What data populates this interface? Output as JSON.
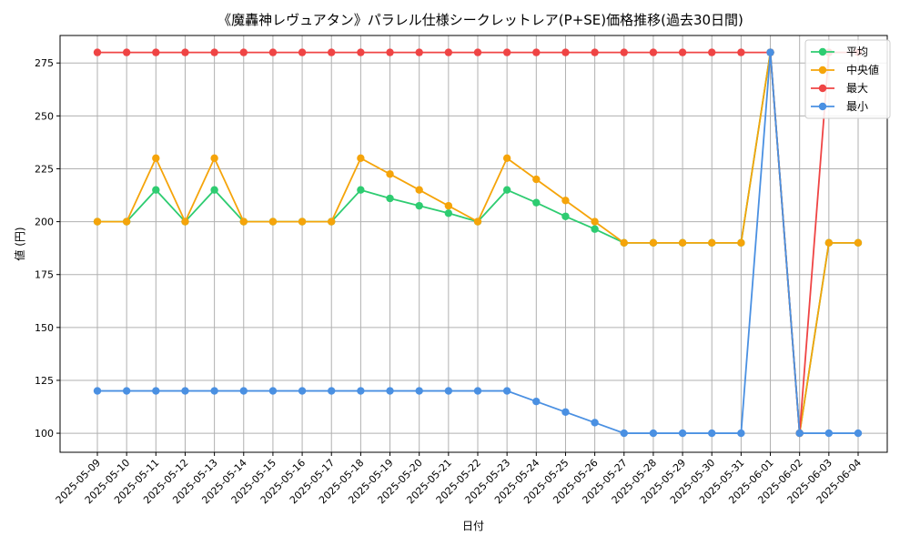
{
  "chart_data": {
    "type": "line",
    "title": "《魔轟神レヴュアタン》パラレル仕様シークレットレア(P+SE)価格推移(過去30日間)",
    "xlabel": "日付",
    "ylabel": "値 (円)",
    "ylim": [
      91,
      288
    ],
    "yticks": [
      100,
      125,
      150,
      175,
      200,
      225,
      250,
      275
    ],
    "grid": true,
    "legend_position": "top-right",
    "categories": [
      "2025-05-09",
      "2025-05-10",
      "2025-05-11",
      "2025-05-12",
      "2025-05-13",
      "2025-05-14",
      "2025-05-15",
      "2025-05-16",
      "2025-05-17",
      "2025-05-18",
      "2025-05-19",
      "2025-05-20",
      "2025-05-21",
      "2025-05-22",
      "2025-05-23",
      "2025-05-24",
      "2025-05-25",
      "2025-05-26",
      "2025-05-27",
      "2025-05-28",
      "2025-05-29",
      "2025-05-30",
      "2025-05-31",
      "2025-06-01",
      "2025-06-02",
      "2025-06-03",
      "2025-06-04"
    ],
    "series": [
      {
        "name": "平均",
        "color": "#2ecc71",
        "values": [
          200,
          200,
          215,
          200,
          215,
          200,
          200,
          200,
          200,
          215,
          211,
          207.5,
          204,
          200,
          215,
          209,
          202.5,
          196.5,
          190,
          190,
          190,
          190,
          190,
          280,
          100,
          190,
          190
        ]
      },
      {
        "name": "中央値",
        "color": "#f5a40a",
        "values": [
          200,
          200,
          230,
          200,
          230,
          200,
          200,
          200,
          200,
          230,
          222.5,
          215,
          207.5,
          200,
          230,
          220,
          210,
          200,
          190,
          190,
          190,
          190,
          190,
          280,
          100,
          190,
          190
        ]
      },
      {
        "name": "最大",
        "color": "#ef4444",
        "values": [
          280,
          280,
          280,
          280,
          280,
          280,
          280,
          280,
          280,
          280,
          280,
          280,
          280,
          280,
          280,
          280,
          280,
          280,
          280,
          280,
          280,
          280,
          280,
          280,
          100,
          280,
          280
        ]
      },
      {
        "name": "最小",
        "color": "#4a90e2",
        "values": [
          120,
          120,
          120,
          120,
          120,
          120,
          120,
          120,
          120,
          120,
          120,
          120,
          120,
          120,
          120,
          115,
          110,
          105,
          100,
          100,
          100,
          100,
          100,
          280,
          100,
          100,
          100
        ]
      }
    ]
  }
}
